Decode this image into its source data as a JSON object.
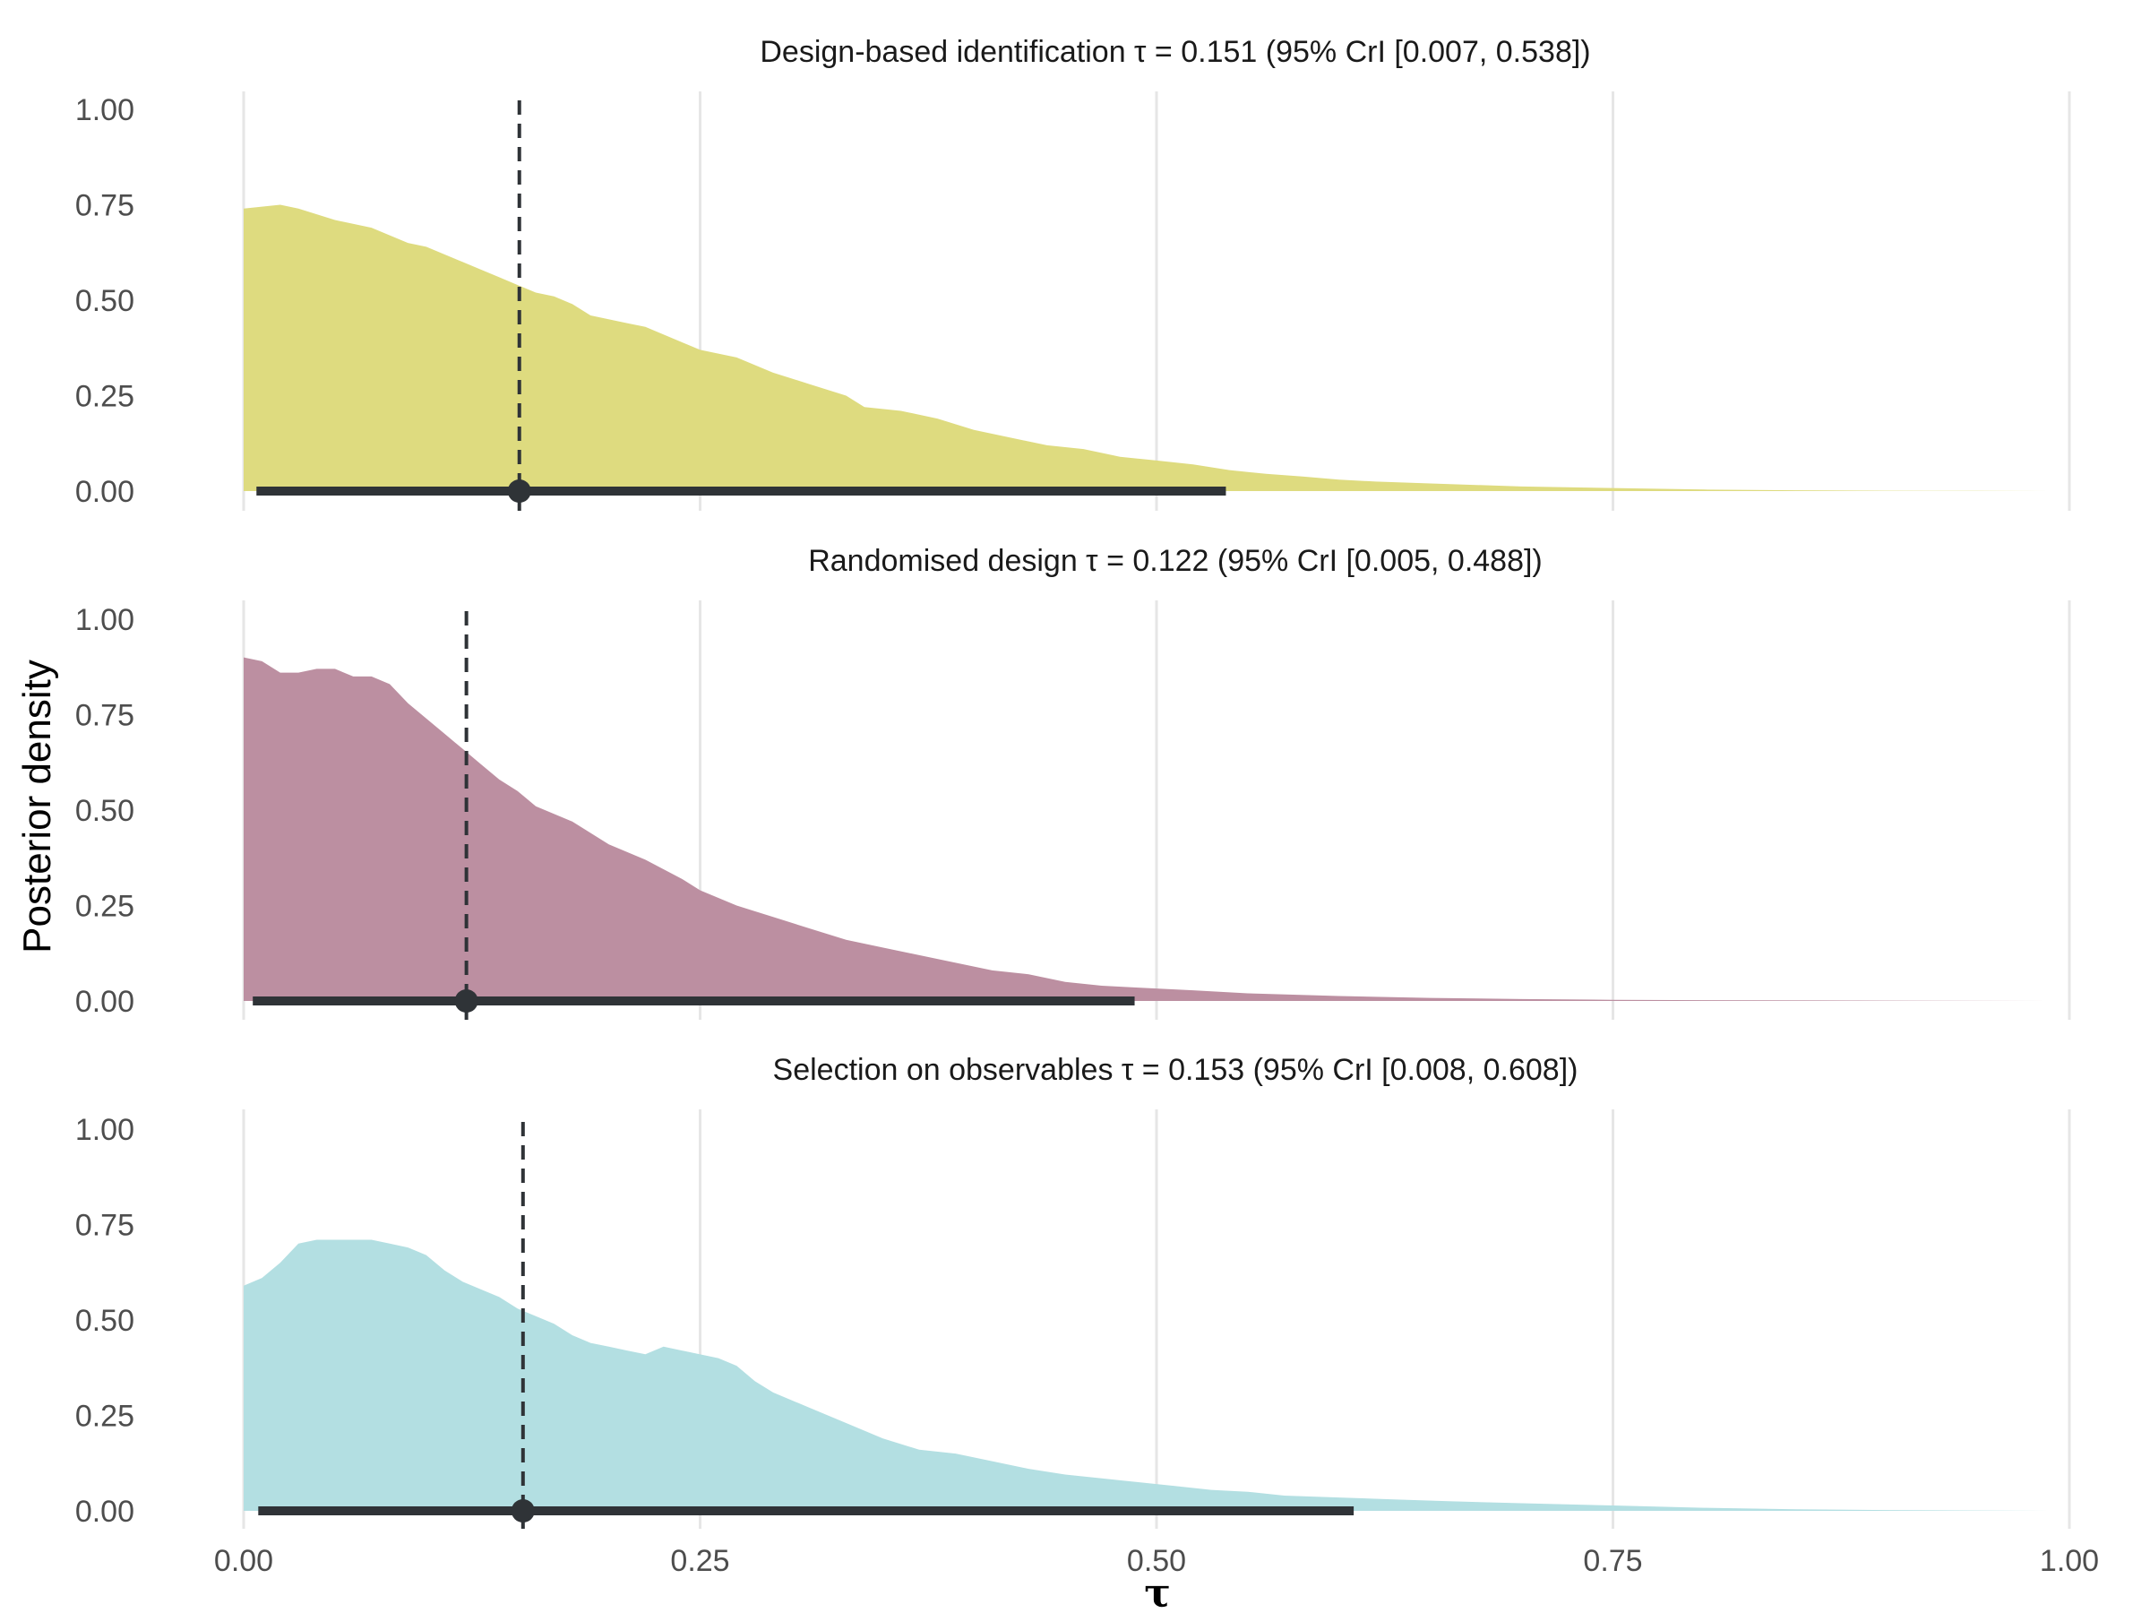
{
  "chart_data": {
    "type": "area",
    "ylabel": "Posterior density",
    "xlabel": "τ",
    "xlim": [
      0,
      1
    ],
    "ylim": [
      0,
      1
    ],
    "x_ticks": [
      0,
      0.25,
      0.5,
      0.75,
      1
    ],
    "x_tick_labels": [
      "0.00",
      "0.25",
      "0.50",
      "0.75",
      "1.00"
    ],
    "y_ticks": [
      0,
      0.25,
      0.5,
      0.75,
      1
    ],
    "y_tick_labels": [
      "0.00",
      "0.25",
      "0.50",
      "0.75",
      "1.00"
    ],
    "grid": "vertical major gridlines",
    "legend": "none",
    "panels": [
      {
        "title": "Design-based identification τ = 0.151 (95% CrI [0.007, 0.538])",
        "fill_color": "#dedb7f",
        "median": 0.151,
        "cri": [
          0.007,
          0.538
        ],
        "density": [
          [
            0,
            0.74
          ],
          [
            0.02,
            0.75
          ],
          [
            0.03,
            0.74
          ],
          [
            0.05,
            0.71
          ],
          [
            0.07,
            0.69
          ],
          [
            0.09,
            0.65
          ],
          [
            0.1,
            0.64
          ],
          [
            0.12,
            0.6
          ],
          [
            0.13,
            0.58
          ],
          [
            0.14,
            0.56
          ],
          [
            0.15,
            0.54
          ],
          [
            0.16,
            0.52
          ],
          [
            0.17,
            0.51
          ],
          [
            0.18,
            0.49
          ],
          [
            0.19,
            0.46
          ],
          [
            0.21,
            0.44
          ],
          [
            0.22,
            0.43
          ],
          [
            0.24,
            0.39
          ],
          [
            0.25,
            0.37
          ],
          [
            0.27,
            0.35
          ],
          [
            0.29,
            0.31
          ],
          [
            0.31,
            0.28
          ],
          [
            0.33,
            0.25
          ],
          [
            0.34,
            0.22
          ],
          [
            0.36,
            0.21
          ],
          [
            0.38,
            0.19
          ],
          [
            0.4,
            0.16
          ],
          [
            0.42,
            0.14
          ],
          [
            0.44,
            0.12
          ],
          [
            0.46,
            0.11
          ],
          [
            0.48,
            0.09
          ],
          [
            0.5,
            0.08
          ],
          [
            0.52,
            0.07
          ],
          [
            0.54,
            0.055
          ],
          [
            0.56,
            0.045
          ],
          [
            0.58,
            0.038
          ],
          [
            0.6,
            0.03
          ],
          [
            0.62,
            0.025
          ],
          [
            0.65,
            0.02
          ],
          [
            0.7,
            0.012
          ],
          [
            0.75,
            0.008
          ],
          [
            0.8,
            0.004
          ],
          [
            0.85,
            0.002
          ],
          [
            0.9,
            0.001
          ],
          [
            0.95,
            0.0005
          ],
          [
            0.99,
            0
          ]
        ]
      },
      {
        "title": "Randomised design τ = 0.122 (95% CrI [0.005, 0.488])",
        "fill_color": "#bc8fa1",
        "median": 0.122,
        "cri": [
          0.005,
          0.488
        ],
        "density": [
          [
            0,
            0.9
          ],
          [
            0.01,
            0.89
          ],
          [
            0.02,
            0.86
          ],
          [
            0.03,
            0.86
          ],
          [
            0.04,
            0.87
          ],
          [
            0.05,
            0.87
          ],
          [
            0.06,
            0.85
          ],
          [
            0.07,
            0.85
          ],
          [
            0.08,
            0.83
          ],
          [
            0.09,
            0.78
          ],
          [
            0.1,
            0.74
          ],
          [
            0.11,
            0.7
          ],
          [
            0.12,
            0.66
          ],
          [
            0.13,
            0.62
          ],
          [
            0.14,
            0.58
          ],
          [
            0.15,
            0.55
          ],
          [
            0.16,
            0.51
          ],
          [
            0.18,
            0.47
          ],
          [
            0.2,
            0.41
          ],
          [
            0.22,
            0.37
          ],
          [
            0.24,
            0.32
          ],
          [
            0.25,
            0.29
          ],
          [
            0.27,
            0.25
          ],
          [
            0.29,
            0.22
          ],
          [
            0.31,
            0.19
          ],
          [
            0.33,
            0.16
          ],
          [
            0.35,
            0.14
          ],
          [
            0.37,
            0.12
          ],
          [
            0.39,
            0.1
          ],
          [
            0.41,
            0.08
          ],
          [
            0.43,
            0.07
          ],
          [
            0.45,
            0.05
          ],
          [
            0.47,
            0.04
          ],
          [
            0.49,
            0.035
          ],
          [
            0.52,
            0.028
          ],
          [
            0.55,
            0.02
          ],
          [
            0.6,
            0.013
          ],
          [
            0.65,
            0.008
          ],
          [
            0.7,
            0.005
          ],
          [
            0.75,
            0.003
          ],
          [
            0.8,
            0.002
          ],
          [
            0.9,
            0.001
          ],
          [
            0.99,
            0
          ]
        ]
      },
      {
        "title": "Selection on observables τ = 0.153 (95% CrI [0.008, 0.608])",
        "fill_color": "#b3dfe2",
        "median": 0.153,
        "cri": [
          0.008,
          0.608
        ],
        "density": [
          [
            0,
            0.59
          ],
          [
            0.01,
            0.61
          ],
          [
            0.02,
            0.65
          ],
          [
            0.03,
            0.7
          ],
          [
            0.04,
            0.71
          ],
          [
            0.05,
            0.71
          ],
          [
            0.06,
            0.71
          ],
          [
            0.07,
            0.71
          ],
          [
            0.08,
            0.7
          ],
          [
            0.09,
            0.69
          ],
          [
            0.1,
            0.67
          ],
          [
            0.11,
            0.63
          ],
          [
            0.12,
            0.6
          ],
          [
            0.13,
            0.58
          ],
          [
            0.14,
            0.56
          ],
          [
            0.15,
            0.53
          ],
          [
            0.16,
            0.51
          ],
          [
            0.17,
            0.49
          ],
          [
            0.18,
            0.46
          ],
          [
            0.19,
            0.44
          ],
          [
            0.2,
            0.43
          ],
          [
            0.21,
            0.42
          ],
          [
            0.22,
            0.41
          ],
          [
            0.23,
            0.43
          ],
          [
            0.24,
            0.42
          ],
          [
            0.26,
            0.4
          ],
          [
            0.27,
            0.38
          ],
          [
            0.28,
            0.34
          ],
          [
            0.29,
            0.31
          ],
          [
            0.31,
            0.27
          ],
          [
            0.33,
            0.23
          ],
          [
            0.35,
            0.19
          ],
          [
            0.37,
            0.16
          ],
          [
            0.39,
            0.15
          ],
          [
            0.41,
            0.13
          ],
          [
            0.43,
            0.11
          ],
          [
            0.45,
            0.095
          ],
          [
            0.47,
            0.085
          ],
          [
            0.49,
            0.075
          ],
          [
            0.51,
            0.065
          ],
          [
            0.53,
            0.055
          ],
          [
            0.55,
            0.05
          ],
          [
            0.57,
            0.04
          ],
          [
            0.6,
            0.035
          ],
          [
            0.63,
            0.03
          ],
          [
            0.66,
            0.025
          ],
          [
            0.7,
            0.02
          ],
          [
            0.75,
            0.014
          ],
          [
            0.8,
            0.008
          ],
          [
            0.85,
            0.004
          ],
          [
            0.9,
            0.002
          ],
          [
            0.95,
            0.001
          ],
          [
            0.99,
            0
          ]
        ]
      }
    ]
  }
}
